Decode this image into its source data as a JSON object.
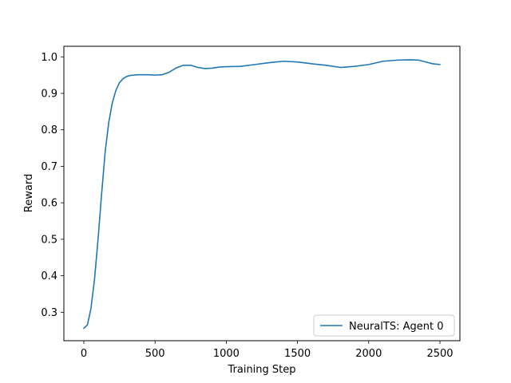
{
  "chart_data": {
    "type": "line",
    "xlabel": "Training Step",
    "ylabel": "Reward",
    "xlim": [
      -140,
      2640
    ],
    "ylim": [
      0.222,
      1.029
    ],
    "xticks": [
      0,
      500,
      1000,
      1500,
      2000,
      2500
    ],
    "yticks": [
      0.3,
      0.4,
      0.5,
      0.6,
      0.7,
      0.8,
      0.9,
      1.0
    ],
    "xtick_labels": [
      "0",
      "500",
      "1000",
      "1500",
      "2000",
      "2500"
    ],
    "ytick_labels": [
      "0.3",
      "0.4",
      "0.5",
      "0.6",
      "0.7",
      "0.8",
      "0.9",
      "1.0"
    ],
    "grid": false,
    "legend_position": "lower-right",
    "series": [
      {
        "name": "NeuralTS: Agent 0",
        "color": "#1f77b4",
        "x": [
          0,
          25,
          50,
          75,
          100,
          125,
          150,
          175,
          200,
          225,
          250,
          275,
          300,
          325,
          350,
          375,
          400,
          450,
          500,
          550,
          600,
          650,
          700,
          750,
          800,
          850,
          900,
          950,
          1000,
          1100,
          1200,
          1300,
          1400,
          1500,
          1600,
          1700,
          1800,
          1900,
          2000,
          2100,
          2200,
          2300,
          2350,
          2400,
          2450,
          2500
        ],
        "y": [
          0.256,
          0.265,
          0.31,
          0.39,
          0.5,
          0.625,
          0.74,
          0.82,
          0.874,
          0.908,
          0.929,
          0.94,
          0.946,
          0.949,
          0.95,
          0.951,
          0.951,
          0.951,
          0.95,
          0.951,
          0.958,
          0.97,
          0.977,
          0.977,
          0.971,
          0.968,
          0.969,
          0.972,
          0.973,
          0.974,
          0.979,
          0.984,
          0.988,
          0.986,
          0.981,
          0.977,
          0.971,
          0.974,
          0.979,
          0.988,
          0.991,
          0.992,
          0.991,
          0.986,
          0.981,
          0.979
        ]
      }
    ]
  }
}
